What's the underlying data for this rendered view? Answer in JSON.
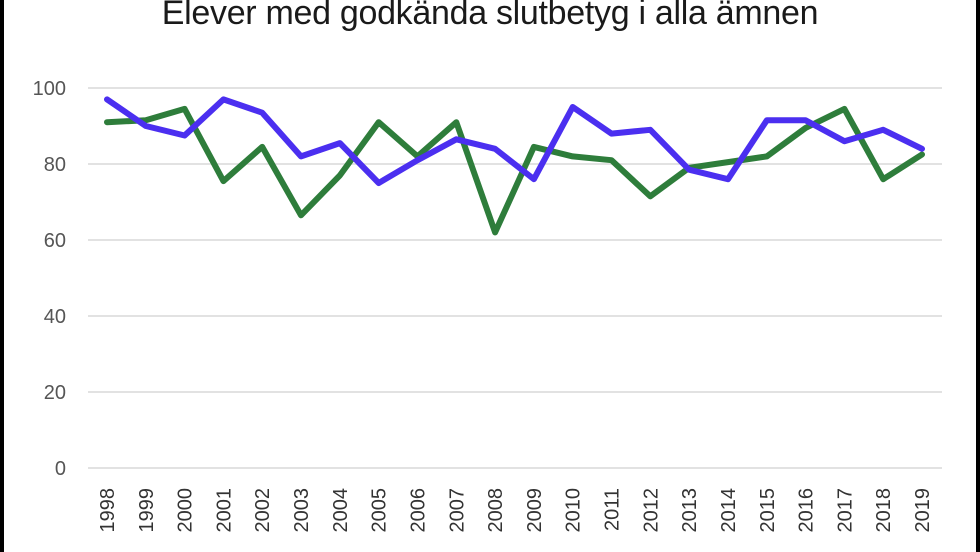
{
  "chart_data": {
    "type": "line",
    "title": "Elever med godkända slutbetyg i alla ämnen",
    "xlabel": "",
    "ylabel": "",
    "categories": [
      "1998",
      "1999",
      "2000",
      "2001",
      "2002",
      "2003",
      "2004",
      "2005",
      "2006",
      "2007",
      "2008",
      "2009",
      "2010",
      "2011",
      "2012",
      "2013",
      "2014",
      "2015",
      "2016",
      "2017",
      "2018",
      "2019"
    ],
    "ylim": [
      0,
      100
    ],
    "yticks": [
      0,
      20,
      40,
      60,
      80,
      100
    ],
    "grid": true,
    "legend": "none",
    "series": [
      {
        "color": "#2e7d3b",
        "values": [
          91,
          91.5,
          94.5,
          75.5,
          84.5,
          66.5,
          77,
          91,
          82,
          91,
          62,
          84.5,
          82,
          81,
          71.5,
          79,
          80.5,
          82,
          89.5,
          94.5,
          76,
          82.5
        ]
      },
      {
        "color": "#4b2ff0",
        "values": [
          97,
          90,
          87.5,
          97,
          93.5,
          82,
          85.5,
          75,
          81,
          86.5,
          84,
          76,
          95,
          88,
          89,
          78.5,
          76,
          91.5,
          91.5,
          86,
          89,
          84
        ]
      }
    ]
  }
}
